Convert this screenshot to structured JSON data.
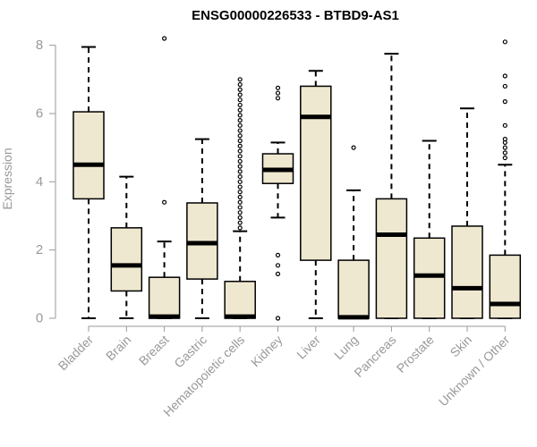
{
  "chart_data": {
    "type": "boxplot",
    "title": "ENSG00000226533 - BTBD9-AS1",
    "xlabel": "",
    "ylabel": "Expression",
    "ylim": [
      0,
      8.2
    ],
    "yticks": [
      0,
      2,
      4,
      6,
      8
    ],
    "categories": [
      "Bladder",
      "Brain",
      "Breast",
      "Gastric",
      "Hematopoietic cells",
      "Kidney",
      "Liver",
      "Lung",
      "Pancreas",
      "Prostate",
      "Skin",
      "Unknown / Other"
    ],
    "boxes": [
      {
        "name": "Bladder",
        "min": 0,
        "q1": 3.5,
        "median": 4.5,
        "q3": 6.05,
        "max": 7.95,
        "outliers": []
      },
      {
        "name": "Brain",
        "min": 0,
        "q1": 0.8,
        "median": 1.55,
        "q3": 2.65,
        "max": 4.15,
        "outliers": []
      },
      {
        "name": "Breast",
        "min": 0,
        "q1": 0,
        "median": 0.05,
        "q3": 1.2,
        "max": 2.25,
        "outliers": [
          3.4,
          8.2
        ]
      },
      {
        "name": "Gastric",
        "min": 0,
        "q1": 1.15,
        "median": 2.2,
        "q3": 3.38,
        "max": 5.25,
        "outliers": []
      },
      {
        "name": "Hematopoietic cells",
        "min": 0,
        "q1": 0,
        "median": 0.05,
        "q3": 1.08,
        "max": 2.55,
        "outliers": [
          2.65,
          2.8,
          2.95,
          3.1,
          3.25,
          3.4,
          3.55,
          3.7,
          3.85,
          4.0,
          4.15,
          4.3,
          4.45,
          4.6,
          4.75,
          4.9,
          5.05,
          5.2,
          5.35,
          5.5,
          5.65,
          5.8,
          5.95,
          6.1,
          6.25,
          6.4,
          6.55,
          6.7,
          6.85,
          7.0
        ]
      },
      {
        "name": "Kidney",
        "min": 2.95,
        "q1": 3.95,
        "median": 4.35,
        "q3": 4.82,
        "max": 5.15,
        "outliers": [
          0,
          1.3,
          1.55,
          1.85,
          6.45,
          6.6,
          6.75
        ]
      },
      {
        "name": "Liver",
        "min": 0,
        "q1": 1.7,
        "median": 5.9,
        "q3": 6.8,
        "max": 7.25,
        "outliers": []
      },
      {
        "name": "Lung",
        "min": 0,
        "q1": 0,
        "median": 0.03,
        "q3": 1.7,
        "max": 3.75,
        "outliers": [
          5.0
        ]
      },
      {
        "name": "Pancreas",
        "min": 0,
        "q1": 0,
        "median": 2.45,
        "q3": 3.5,
        "max": 7.75,
        "outliers": []
      },
      {
        "name": "Prostate",
        "min": 0,
        "q1": 0,
        "median": 1.25,
        "q3": 2.35,
        "max": 5.2,
        "outliers": []
      },
      {
        "name": "Skin",
        "min": 0,
        "q1": 0,
        "median": 0.88,
        "q3": 2.7,
        "max": 6.15,
        "outliers": []
      },
      {
        "name": "Unknown / Other",
        "min": 0,
        "q1": 0,
        "median": 0.42,
        "q3": 1.85,
        "max": 4.5,
        "outliers": [
          4.7,
          4.85,
          5.0,
          5.15,
          5.25,
          5.65,
          6.35,
          6.8,
          7.1,
          8.1
        ]
      }
    ]
  }
}
